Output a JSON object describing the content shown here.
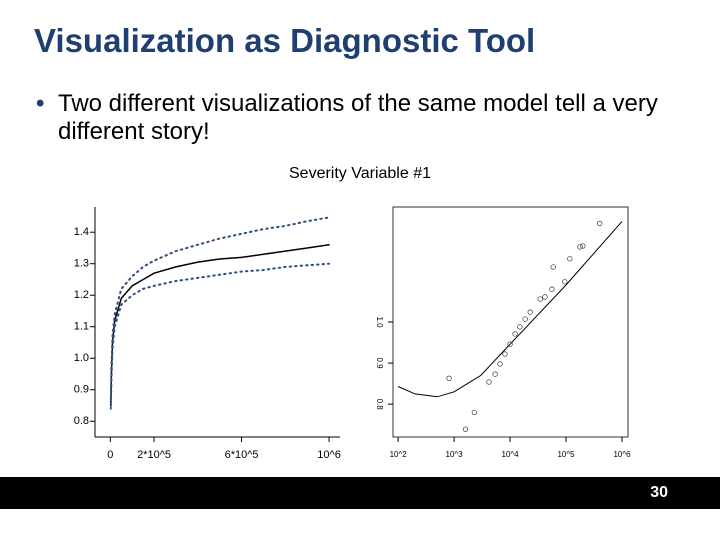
{
  "slide": {
    "title": "Visualization as Diagnostic Tool",
    "bullet": "Two different visualizations of the same model tell a very different story!",
    "figure_title": "Severity Variable #1",
    "page_number": "30"
  },
  "chart_data": [
    {
      "type": "line",
      "frame": "open",
      "x": [
        2000,
        5000,
        10000,
        20000,
        50000,
        100000,
        150000,
        200000,
        300000,
        400000,
        500000,
        600000,
        700000,
        800000,
        900000,
        1000000
      ],
      "series": [
        {
          "color": "#000000",
          "style": "solid",
          "values": [
            0.85,
            0.95,
            1.05,
            1.12,
            1.19,
            1.23,
            1.25,
            1.27,
            1.29,
            1.305,
            1.315,
            1.32,
            1.33,
            1.34,
            1.35,
            1.36
          ]
        },
        {
          "color": "#2f5080",
          "style": "dotted",
          "values": [
            0.86,
            0.97,
            1.07,
            1.14,
            1.22,
            1.26,
            1.29,
            1.31,
            1.34,
            1.36,
            1.38,
            1.395,
            1.41,
            1.42,
            1.435,
            1.447
          ]
        },
        {
          "color": "#2f5080",
          "style": "dotted",
          "values": [
            0.84,
            0.93,
            1.03,
            1.1,
            1.17,
            1.2,
            1.22,
            1.23,
            1.245,
            1.255,
            1.265,
            1.275,
            1.28,
            1.29,
            1.295,
            1.3
          ]
        }
      ],
      "xlim": [
        -70000,
        1050000
      ],
      "ylim": [
        0.75,
        1.48
      ],
      "xticks": [
        0,
        {
          "value": 200000,
          "label": "2*10^5"
        },
        {
          "value": 600000,
          "label": "6*10^5"
        },
        {
          "value": 1000000,
          "label": "10^6"
        }
      ],
      "yticks": [
        0.8,
        0.9,
        {
          "value": 1,
          "label": "1.0"
        },
        1.1,
        1.2,
        1.3,
        1.4
      ]
    },
    {
      "type": "scatter",
      "frame": "box",
      "xscale": "log",
      "x": [
        813,
        1600,
        2300,
        4200,
        5400,
        6600,
        8100,
        10000,
        12300,
        15000,
        18600,
        22900,
        34700,
        42000,
        56000,
        59000,
        95000,
        117000,
        178000,
        200000,
        400000
      ],
      "values": [
        0.863,
        0.739,
        0.78,
        0.854,
        0.873,
        0.898,
        0.922,
        0.946,
        0.971,
        0.988,
        1.007,
        1.024,
        1.056,
        1.061,
        1.08,
        1.134,
        1.098,
        1.154,
        1.183,
        1.185,
        1.24
      ],
      "fit": {
        "x": [
          100,
          200,
          500,
          1000,
          3000,
          10000,
          100000,
          1000000
        ],
        "values": [
          0.843,
          0.825,
          0.818,
          0.83,
          0.87,
          0.946,
          1.09,
          1.245
        ]
      },
      "xlim": [
        81,
        1280000
      ],
      "ylim": [
        0.72,
        1.28
      ],
      "xticks": [
        {
          "value": 100,
          "label": "10^2"
        },
        {
          "value": 1000,
          "label": "10^3"
        },
        {
          "value": 10000,
          "label": "10^4"
        },
        {
          "value": 100000,
          "label": "10^5"
        },
        {
          "value": 1000000,
          "label": "10^6"
        }
      ],
      "yticks": [
        0.8,
        0.9,
        {
          "value": 1,
          "label": "1.0"
        }
      ]
    }
  ]
}
